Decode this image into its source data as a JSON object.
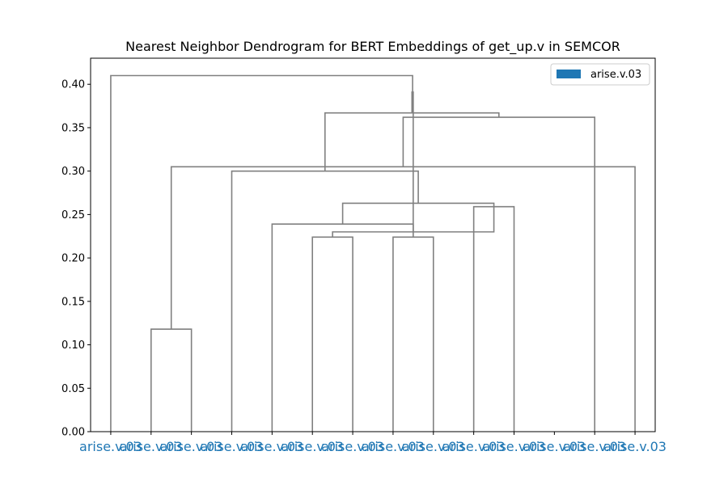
{
  "chart_data": {
    "type": "dendrogram",
    "title": "Nearest Neighbor Dendrogram for BERT Embeddings of get_up.v in SEMCOR",
    "xlabel": "",
    "ylabel": "",
    "ylim": [
      0,
      0.43
    ],
    "yticks": [
      0.0,
      0.05,
      0.1,
      0.15,
      0.2,
      0.25,
      0.3,
      0.35,
      0.4
    ],
    "ytick_labels": [
      "0.00",
      "0.05",
      "0.10",
      "0.15",
      "0.20",
      "0.25",
      "0.30",
      "0.35",
      "0.40"
    ],
    "leaves": [
      "arise.v.03",
      "arise.v.03",
      "arise.v.03",
      "arise.v.03",
      "arise.v.03",
      "arise.v.03",
      "arise.v.03",
      "arise.v.03",
      "arise.v.03",
      "arise.v.03",
      "arise.v.03",
      "arise.v.03",
      "arise.v.03",
      "arise.v.03"
    ],
    "merges": [
      {
        "left": 1,
        "right": 2,
        "height": 0.118
      },
      {
        "left": 7,
        "right": 8,
        "height": 0.224
      },
      {
        "left": 5,
        "right": 6,
        "height": 0.224
      },
      {
        "left": 9,
        "right": 10,
        "height": 0.259
      },
      {
        "left": 13,
        "right": 14,
        "height": 0.305
      },
      {
        "left": 17,
        "right": 16,
        "height": 0.23
      },
      {
        "left": 4,
        "right": 19,
        "height": 0.239
      },
      {
        "left": 20,
        "right": 17,
        "height": 0.263
      },
      {
        "left": 3,
        "right": 21,
        "height": 0.3
      },
      {
        "left": 12,
        "right": 18,
        "height": 0.362
      },
      {
        "left": 22,
        "right": 23,
        "height": 0.367
      },
      {
        "left": 15,
        "right": 24,
        "height": 0.391
      },
      {
        "left": 0,
        "right": 25,
        "height": 0.41
      }
    ],
    "link_color": "#808080",
    "legend": {
      "position": "top-right",
      "entries": [
        {
          "label": "arise.v.03",
          "color": "#1f77b4"
        }
      ]
    },
    "leaf_label_color": "#1f77b4",
    "grid": false
  }
}
